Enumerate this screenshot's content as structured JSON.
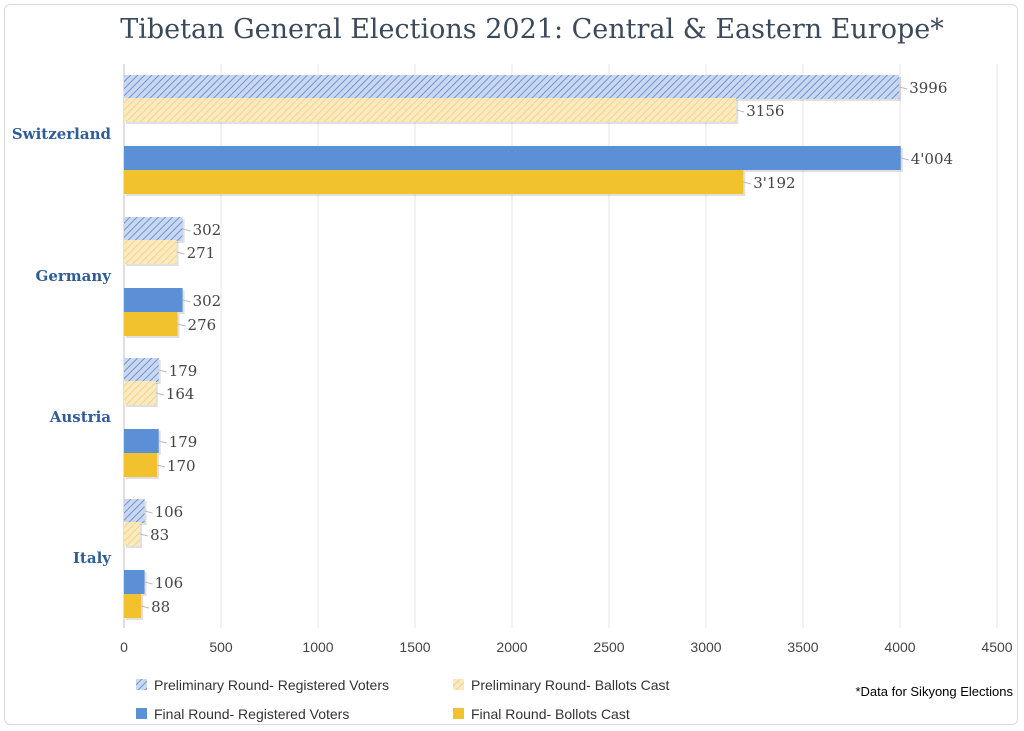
{
  "chart_data": {
    "type": "bar",
    "orientation": "horizontal",
    "title": "Tibetan General Elections 2021: Central & Eastern Europe*",
    "categories": [
      "Switzerland",
      "Germany",
      "Austria",
      "Italy"
    ],
    "series": [
      {
        "name": "Preliminary Round- Registered Voters",
        "values": [
          3996,
          302,
          179,
          106
        ],
        "labels": [
          "3996",
          "302",
          "179",
          "106"
        ],
        "color": "#a9bfe6",
        "pattern": "hatch"
      },
      {
        "name": "Preliminary Round- Ballots Cast",
        "values": [
          3156,
          271,
          164,
          83
        ],
        "labels": [
          "3156",
          "271",
          "164",
          "83"
        ],
        "color": "#f7de9c",
        "pattern": "hatch"
      },
      {
        "name": "Final Round- Registered Voters",
        "values": [
          4004,
          302,
          179,
          106
        ],
        "labels": [
          "4'004",
          "302",
          "179",
          "106"
        ],
        "color": "#5b8fd6",
        "pattern": "solid"
      },
      {
        "name": "Final Round- Bollots Cast",
        "values": [
          3192,
          276,
          170,
          88
        ],
        "labels": [
          "3'192",
          "276",
          "170",
          "88"
        ],
        "color": "#f2c12e",
        "pattern": "solid"
      }
    ],
    "xlim": [
      0,
      4500
    ],
    "xticks": [
      0,
      500,
      1000,
      1500,
      2000,
      2500,
      3000,
      3500,
      4000,
      4500
    ],
    "grid": true,
    "legend_position": "bottom",
    "footnote": "*Data for Sikyong Elections"
  }
}
